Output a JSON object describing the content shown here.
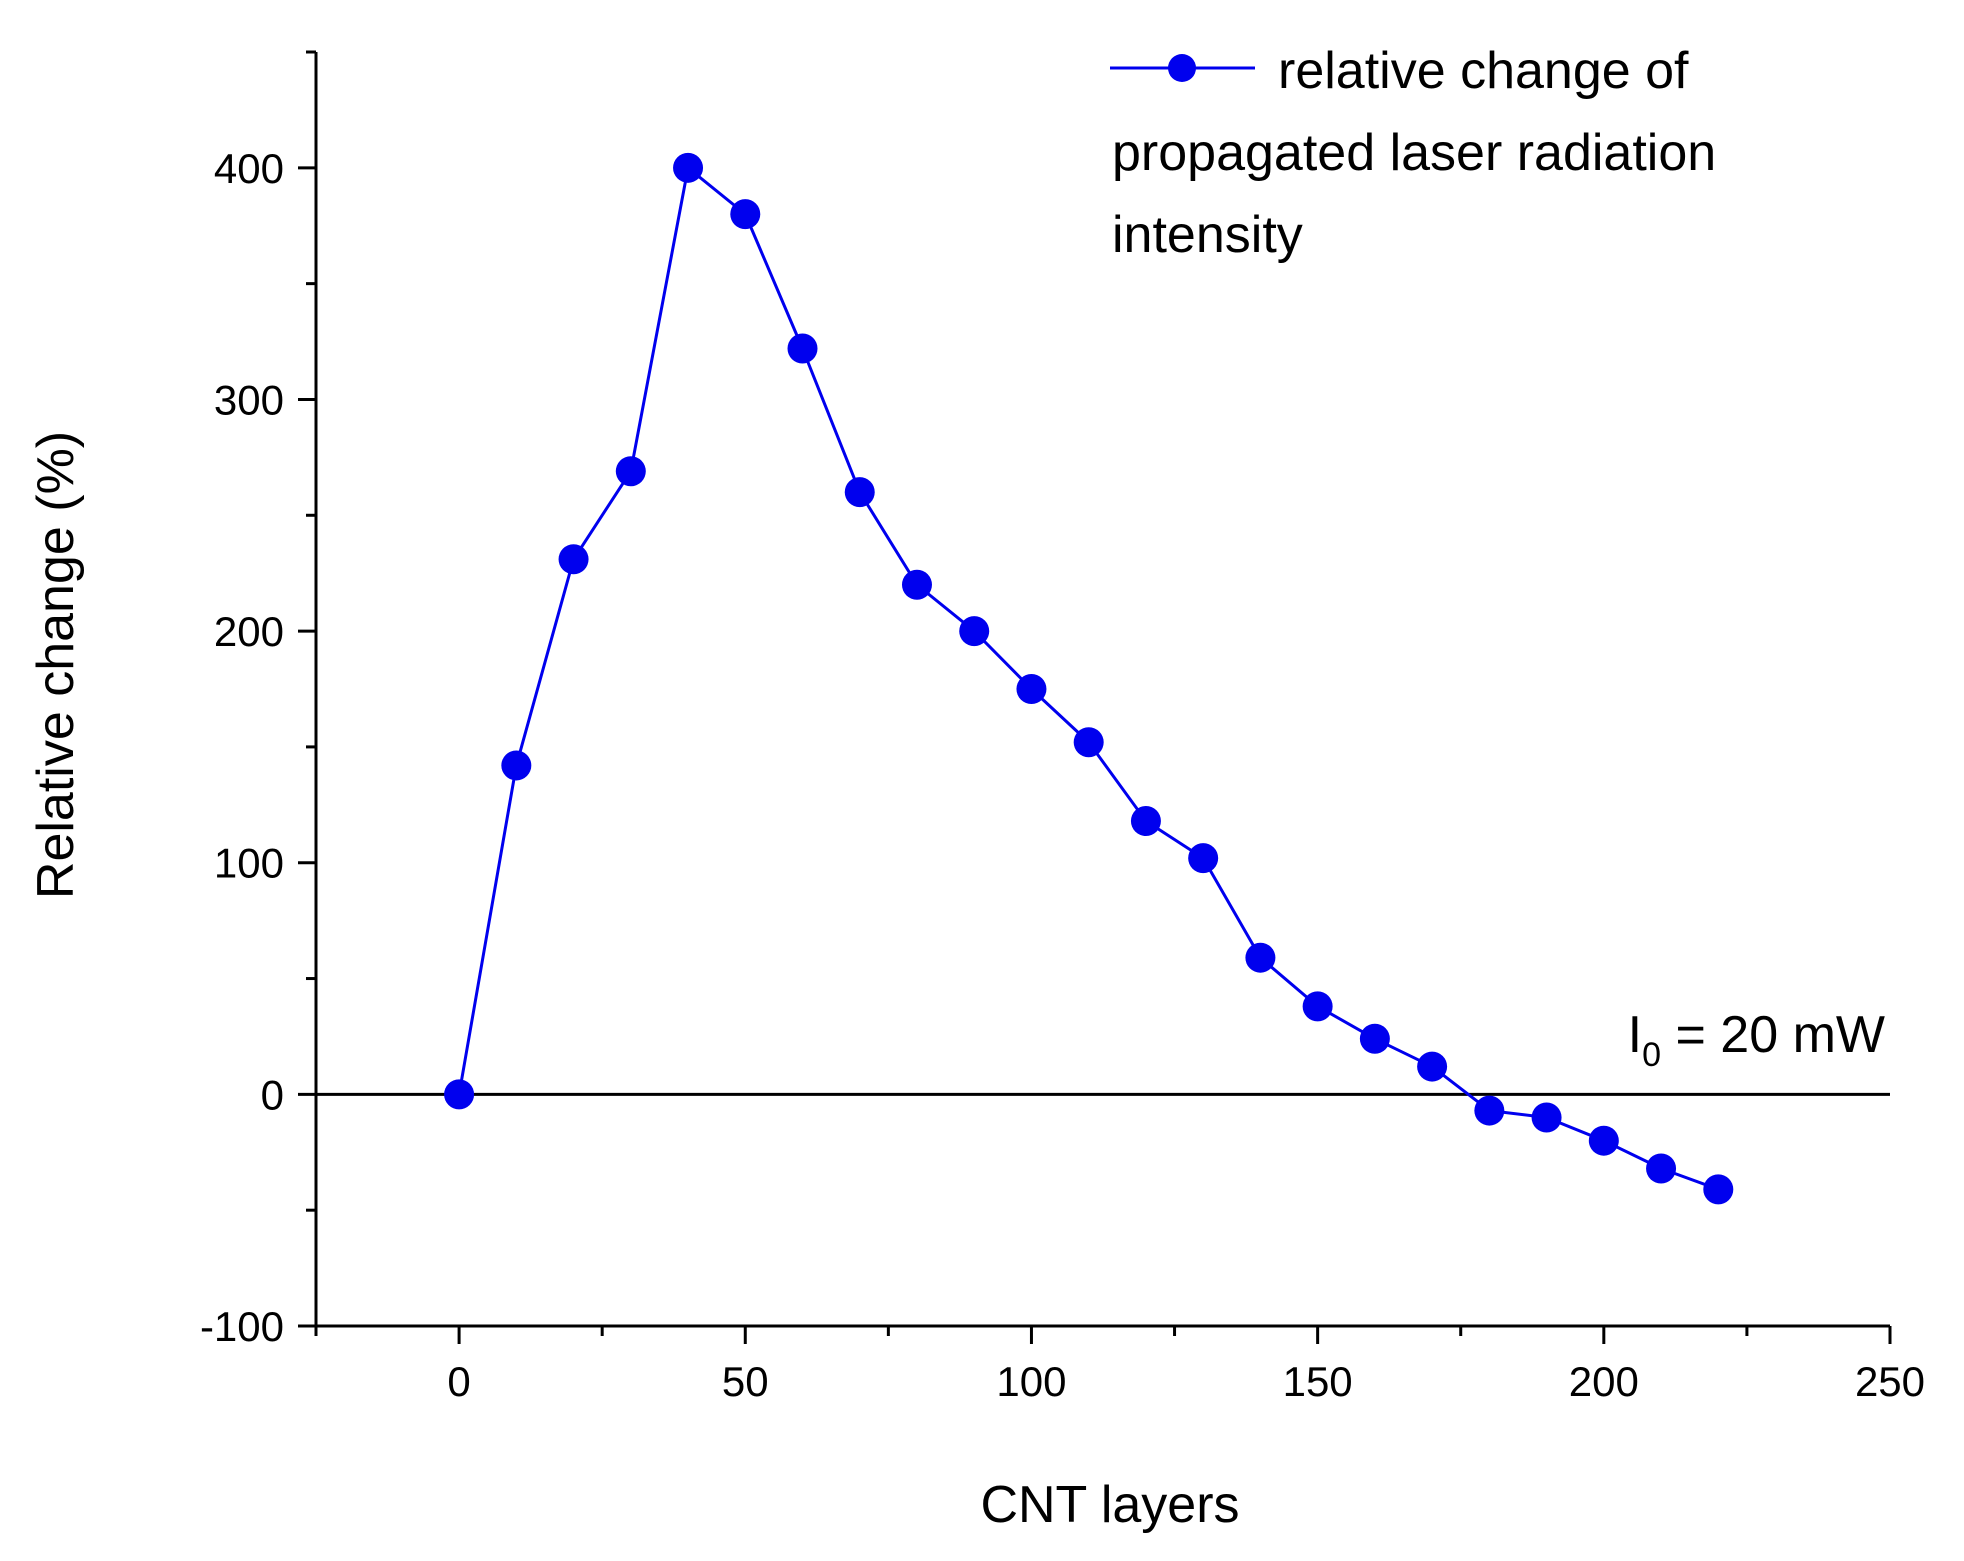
{
  "chart_data": {
    "type": "line",
    "title": "",
    "xlabel": "CNT layers",
    "ylabel": "Relative change (%)",
    "xlim": [
      -25,
      250
    ],
    "ylim": [
      -100,
      450
    ],
    "x_major_ticks": [
      0,
      50,
      100,
      150,
      200,
      250
    ],
    "y_major_ticks": [
      -100,
      0,
      100,
      200,
      300,
      400
    ],
    "x_tick_labels": [
      "0",
      "50",
      "100",
      "150",
      "200",
      "250"
    ],
    "y_tick_labels": [
      "-100",
      "0",
      "100",
      "200",
      "300",
      "400"
    ],
    "reference_line": {
      "y": 0
    },
    "annotation": {
      "main": "I",
      "subscript": "0",
      "rest": " = 20 mW"
    },
    "legend": {
      "position": "top-right",
      "lines": [
        "relative change of",
        "propagated laser radiation",
        "intensity"
      ]
    },
    "series": [
      {
        "name": "relative change of propagated laser radiation intensity",
        "color": "#0000ee",
        "x": [
          0,
          10,
          20,
          30,
          40,
          50,
          60,
          70,
          80,
          90,
          100,
          110,
          120,
          130,
          140,
          150,
          160,
          170,
          180,
          190,
          200,
          210,
          220
        ],
        "values": [
          0,
          142,
          231,
          269,
          400,
          380,
          322,
          260,
          220,
          200,
          175,
          152,
          118,
          102,
          59,
          38,
          24,
          12,
          -7,
          -10,
          -20,
          -32,
          -41
        ]
      }
    ]
  }
}
